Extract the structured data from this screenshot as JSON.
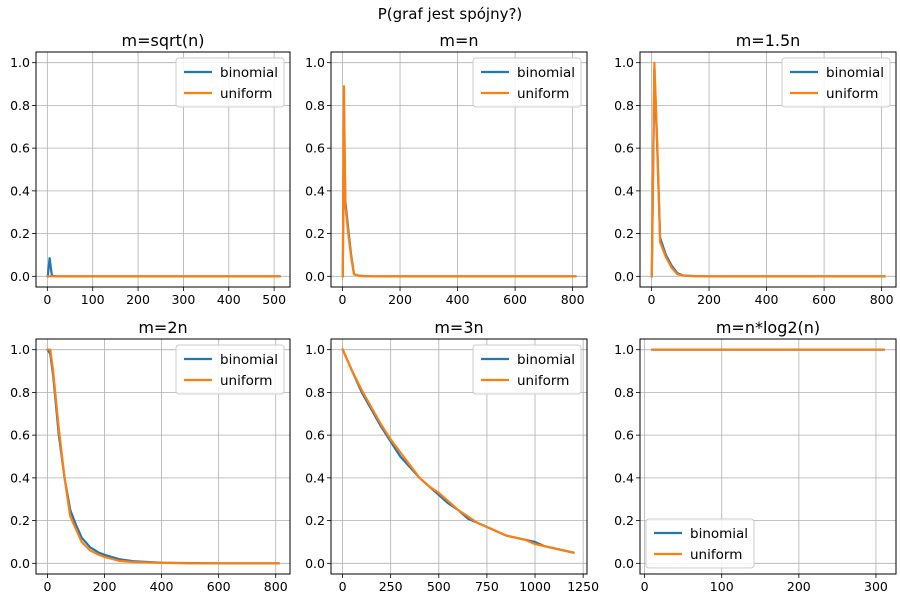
{
  "figure": {
    "suptitle": "P(graf jest spójny?)"
  },
  "colors": {
    "binomial": "#1f77b4",
    "uniform": "#ff7f0e",
    "grid": "#b0b0b0",
    "legend_border": "#cccccc"
  },
  "chart_data": [
    {
      "type": "line",
      "title": "m=sqrt(n)",
      "xlabel": "",
      "ylabel": "",
      "xlim": [
        -25,
        535
      ],
      "ylim": [
        -0.05,
        1.05
      ],
      "xticks": [
        0,
        100,
        200,
        300,
        400,
        500
      ],
      "yticks": [
        0.0,
        0.2,
        0.4,
        0.6,
        0.8,
        1.0
      ],
      "grid": true,
      "legend": "upper-right",
      "series": [
        {
          "name": "binomial",
          "x": [
            1,
            5,
            10,
            20,
            50,
            100,
            200,
            300,
            400,
            512
          ],
          "values": [
            0,
            0.085,
            0.003,
            0,
            0,
            0,
            0,
            0,
            0,
            0
          ]
        },
        {
          "name": "uniform",
          "x": [
            1,
            5,
            10,
            20,
            50,
            100,
            200,
            300,
            400,
            512
          ],
          "values": [
            0,
            0,
            0,
            0,
            0,
            0,
            0,
            0,
            0,
            0
          ]
        }
      ]
    },
    {
      "type": "line",
      "title": "m=n",
      "xlabel": "",
      "ylabel": "",
      "xlim": [
        -40,
        850
      ],
      "ylim": [
        -0.05,
        1.05
      ],
      "xticks": [
        0,
        200,
        400,
        600,
        800
      ],
      "yticks": [
        0.0,
        0.2,
        0.4,
        0.6,
        0.8,
        1.0
      ],
      "grid": true,
      "legend": "upper-right",
      "series": [
        {
          "name": "binomial",
          "x": [
            1,
            5,
            10,
            20,
            30,
            40,
            60,
            100,
            200,
            400,
            600,
            810
          ],
          "values": [
            0.0,
            0.72,
            0.35,
            0.22,
            0.1,
            0.01,
            0.002,
            0,
            0,
            0,
            0,
            0
          ]
        },
        {
          "name": "uniform",
          "x": [
            1,
            5,
            10,
            20,
            30,
            40,
            60,
            100,
            200,
            400,
            600,
            810
          ],
          "values": [
            0.0,
            0.89,
            0.33,
            0.2,
            0.09,
            0.01,
            0.002,
            0,
            0,
            0,
            0,
            0
          ]
        }
      ]
    },
    {
      "type": "line",
      "title": "m=1.5n",
      "xlabel": "",
      "ylabel": "",
      "xlim": [
        -40,
        850
      ],
      "ylim": [
        -0.05,
        1.05
      ],
      "xticks": [
        0,
        200,
        400,
        600,
        800
      ],
      "yticks": [
        0.0,
        0.2,
        0.4,
        0.6,
        0.8,
        1.0
      ],
      "grid": true,
      "legend": "upper-right",
      "series": [
        {
          "name": "binomial",
          "x": [
            1,
            10,
            20,
            30,
            50,
            70,
            90,
            110,
            150,
            200,
            300,
            400,
            600,
            810
          ],
          "values": [
            0.0,
            0.97,
            0.6,
            0.18,
            0.1,
            0.05,
            0.015,
            0.004,
            0.001,
            0,
            0,
            0,
            0,
            0
          ]
        },
        {
          "name": "uniform",
          "x": [
            1,
            10,
            20,
            30,
            50,
            70,
            90,
            110,
            150,
            200,
            300,
            400,
            600,
            810
          ],
          "values": [
            0.0,
            1.0,
            0.62,
            0.16,
            0.09,
            0.04,
            0.01,
            0.003,
            0.001,
            0,
            0,
            0,
            0,
            0
          ]
        }
      ]
    },
    {
      "type": "line",
      "title": "m=2n",
      "xlabel": "",
      "ylabel": "",
      "xlim": [
        -40,
        850
      ],
      "ylim": [
        -0.05,
        1.05
      ],
      "xticks": [
        0,
        200,
        400,
        600,
        800
      ],
      "yticks": [
        0.0,
        0.2,
        0.4,
        0.6,
        0.8,
        1.0
      ],
      "grid": true,
      "legend": "upper-right",
      "series": [
        {
          "name": "binomial",
          "x": [
            1,
            10,
            20,
            40,
            60,
            80,
            100,
            120,
            150,
            180,
            200,
            250,
            300,
            400,
            500,
            600,
            700,
            810
          ],
          "values": [
            1.0,
            0.98,
            0.88,
            0.6,
            0.4,
            0.25,
            0.18,
            0.12,
            0.075,
            0.05,
            0.04,
            0.02,
            0.01,
            0.003,
            0.001,
            0,
            0,
            0
          ]
        },
        {
          "name": "uniform",
          "x": [
            1,
            10,
            20,
            40,
            60,
            80,
            100,
            120,
            150,
            180,
            200,
            250,
            300,
            400,
            500,
            600,
            700,
            810
          ],
          "values": [
            1.0,
            1.0,
            0.9,
            0.63,
            0.4,
            0.22,
            0.16,
            0.1,
            0.06,
            0.04,
            0.03,
            0.012,
            0.006,
            0.002,
            0,
            0,
            0,
            0
          ]
        }
      ]
    },
    {
      "type": "line",
      "title": "m=3n",
      "xlabel": "",
      "ylabel": "",
      "xlim": [
        -60,
        1270
      ],
      "ylim": [
        -0.05,
        1.05
      ],
      "xticks": [
        0,
        250,
        500,
        750,
        1000,
        1250
      ],
      "yticks": [
        0.0,
        0.2,
        0.4,
        0.6,
        0.8,
        1.0
      ],
      "grid": true,
      "legend": "upper-right",
      "series": [
        {
          "name": "binomial",
          "x": [
            1,
            50,
            100,
            150,
            200,
            250,
            300,
            350,
            400,
            450,
            500,
            550,
            600,
            650,
            700,
            750,
            800,
            850,
            900,
            950,
            1000,
            1050,
            1100,
            1150,
            1200
          ],
          "values": [
            1.0,
            0.9,
            0.8,
            0.72,
            0.64,
            0.57,
            0.5,
            0.45,
            0.4,
            0.36,
            0.32,
            0.28,
            0.25,
            0.21,
            0.19,
            0.17,
            0.15,
            0.13,
            0.12,
            0.11,
            0.1,
            0.08,
            0.07,
            0.06,
            0.05
          ]
        },
        {
          "name": "uniform",
          "x": [
            1,
            50,
            100,
            150,
            200,
            250,
            300,
            350,
            400,
            450,
            500,
            550,
            600,
            650,
            700,
            750,
            800,
            850,
            900,
            950,
            1000,
            1050,
            1100,
            1150,
            1200
          ],
          "values": [
            1.0,
            0.9,
            0.81,
            0.73,
            0.65,
            0.58,
            0.52,
            0.46,
            0.4,
            0.36,
            0.33,
            0.29,
            0.25,
            0.22,
            0.19,
            0.17,
            0.15,
            0.13,
            0.12,
            0.11,
            0.09,
            0.08,
            0.07,
            0.06,
            0.05
          ]
        }
      ]
    },
    {
      "type": "line",
      "title": "m=n*log2(n)",
      "xlabel": "",
      "ylabel": "",
      "xlim": [
        -6,
        326
      ],
      "ylim": [
        -0.05,
        1.05
      ],
      "xticks": [
        0,
        100,
        200,
        300
      ],
      "yticks": [
        0.0,
        0.2,
        0.4,
        0.6,
        0.8,
        1.0
      ],
      "grid": true,
      "legend": "lower-left",
      "series": [
        {
          "name": "binomial",
          "x": [
            10,
            50,
            100,
            150,
            200,
            250,
            310
          ],
          "values": [
            1,
            1,
            1,
            1,
            1,
            1,
            1
          ]
        },
        {
          "name": "uniform",
          "x": [
            10,
            50,
            100,
            150,
            200,
            250,
            310
          ],
          "values": [
            1,
            1,
            1,
            1,
            1,
            1,
            1
          ]
        }
      ]
    }
  ]
}
